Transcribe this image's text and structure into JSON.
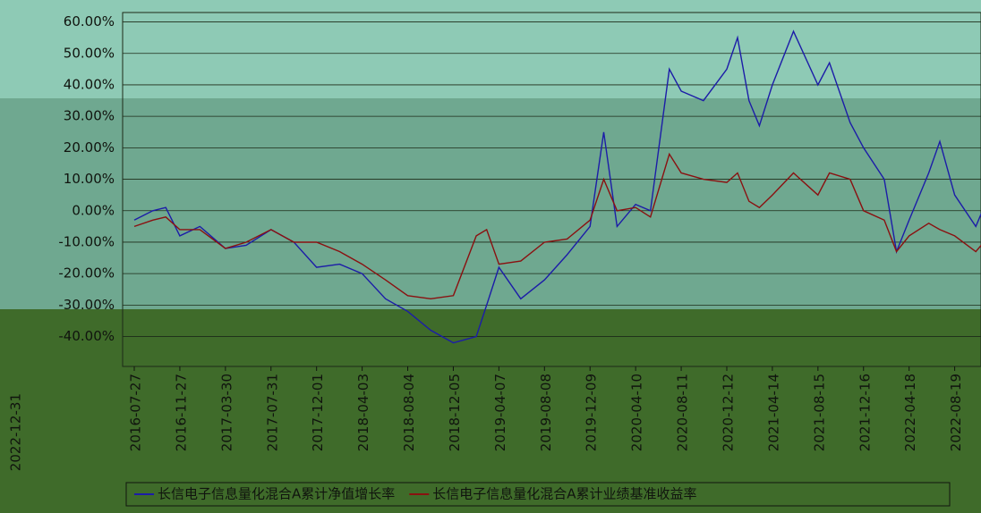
{
  "chart_data": {
    "type": "line",
    "x": [
      "2016-07-27",
      "2016-09-15",
      "2016-10-20",
      "2016-11-27",
      "2017-01-20",
      "2017-03-30",
      "2017-05-25",
      "2017-07-31",
      "2017-10-01",
      "2017-12-01",
      "2018-02-01",
      "2018-04-03",
      "2018-06-05",
      "2018-08-04",
      "2018-10-05",
      "2018-12-05",
      "2019-02-05",
      "2019-03-05",
      "2019-04-07",
      "2019-06-05",
      "2019-08-08",
      "2019-10-08",
      "2019-12-09",
      "2020-01-15",
      "2020-02-20",
      "2020-04-10",
      "2020-05-20",
      "2020-07-10",
      "2020-08-11",
      "2020-10-10",
      "2020-12-12",
      "2021-01-10",
      "2021-02-10",
      "2021-03-10",
      "2021-04-14",
      "2021-06-10",
      "2021-08-15",
      "2021-09-15",
      "2021-11-10",
      "2021-12-16",
      "2022-02-10",
      "2022-03-15",
      "2022-04-18",
      "2022-06-10",
      "2022-07-10",
      "2022-08-19",
      "2022-10-15",
      "2022-11-20",
      "2022-12-31"
    ],
    "series": [
      {
        "name": "长信电子信息量化混合A累计净值增长率",
        "color": "#1c1ca8",
        "values": [
          -3,
          0,
          1,
          -8,
          -5,
          -12,
          -11,
          -6,
          -10,
          -18,
          -17,
          -20,
          -28,
          -32,
          -38,
          -42,
          -40,
          -30,
          -18,
          -28,
          -22,
          -14,
          -5,
          25,
          -5,
          2,
          0,
          45,
          38,
          35,
          45,
          55,
          35,
          27,
          40,
          57,
          40,
          47,
          28,
          20,
          10,
          -13,
          -3,
          12,
          22,
          5,
          -5,
          5,
          -5
        ]
      },
      {
        "name": "长信电子信息量化混合A累计业绩基准收益率",
        "color": "#8a1010",
        "values": [
          -5,
          -3,
          -2,
          -6,
          -6,
          -12,
          -10,
          -6,
          -10,
          -10,
          -13,
          -17,
          -22,
          -27,
          -28,
          -27,
          -8,
          -6,
          -17,
          -16,
          -10,
          -9,
          -3,
          10,
          0,
          1,
          -2,
          18,
          12,
          10,
          9,
          12,
          3,
          1,
          5,
          12,
          5,
          12,
          10,
          0,
          -3,
          -13,
          -8,
          -4,
          -6,
          -8,
          -13,
          -8,
          -5
        ]
      }
    ],
    "xlim": [
      "2016-07-27",
      "2022-12-31"
    ],
    "xticks": [
      "2016-07-27",
      "2016-11-27",
      "2017-03-30",
      "2017-07-31",
      "2017-12-01",
      "2018-04-03",
      "2018-08-04",
      "2018-12-05",
      "2019-04-07",
      "2019-08-08",
      "2019-12-09",
      "2020-04-10",
      "2020-08-11",
      "2020-12-12",
      "2021-04-14",
      "2021-08-15",
      "2021-12-16",
      "2022-04-18",
      "2022-08-19"
    ],
    "ylim": [
      -49.5,
      63
    ],
    "yticks": [
      {
        "value": 60,
        "label": "60.00%"
      },
      {
        "value": 50,
        "label": "50.00%"
      },
      {
        "value": 40,
        "label": "40.00%"
      },
      {
        "value": 30,
        "label": "30.00%"
      },
      {
        "value": 20,
        "label": "20.00%"
      },
      {
        "value": 10,
        "label": "10.00%"
      },
      {
        "value": 0,
        "label": "0.00%"
      },
      {
        "value": -10,
        "label": "-10.00%"
      },
      {
        "value": -20,
        "label": "-20.00%"
      },
      {
        "value": -30,
        "label": "-30.00%"
      },
      {
        "value": -40,
        "label": "-40.00%"
      }
    ],
    "grid": true
  }
}
